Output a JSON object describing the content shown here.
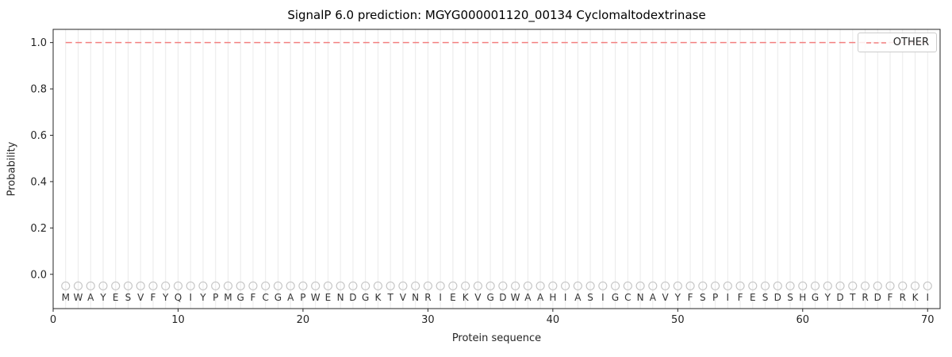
{
  "chart_data": {
    "type": "line",
    "title": "SignalP 6.0 prediction: MGYG000001120_00134 Cyclomaltodextrinase",
    "xlabel": "Protein sequence",
    "ylabel": "Probability",
    "xlim": [
      0,
      71
    ],
    "ylim": [
      -0.148,
      1.057
    ],
    "xticks": [
      0,
      10,
      20,
      30,
      40,
      50,
      60,
      70
    ],
    "yticks": [
      0.0,
      0.2,
      0.4,
      0.6,
      0.8,
      1.0
    ],
    "grid": "vertical gridline at each residue position 1-70",
    "sequence": "MWAYESVFYQIYPMGFCGAPWENDGKTVNRIEKVGDWAAHIASIGCNAVYFSPIFESDSHGYDTRDFRKI",
    "series": [
      {
        "name": "OTHER",
        "style": "dashed",
        "color": "#f28080",
        "x_positions": "residue index 1 through 70",
        "values": [
          1,
          1,
          1,
          1,
          1,
          1,
          1,
          1,
          1,
          1,
          1,
          1,
          1,
          1,
          1,
          1,
          1,
          1,
          1,
          1,
          1,
          1,
          1,
          1,
          1,
          1,
          1,
          1,
          1,
          1,
          1,
          1,
          1,
          1,
          1,
          1,
          1,
          1,
          1,
          1,
          1,
          1,
          1,
          1,
          1,
          1,
          1,
          1,
          1,
          1,
          1,
          1,
          1,
          1,
          1,
          1,
          1,
          1,
          1,
          1,
          1,
          1,
          1,
          1,
          1,
          1,
          1,
          1,
          1,
          1
        ]
      }
    ],
    "markers": {
      "shape": "open-circle",
      "y": -0.05,
      "radius": 5,
      "color": "#c4c4c4"
    },
    "sequence_letters_y": -0.1,
    "legend": {
      "position": "upper right",
      "entries": [
        {
          "label": "OTHER",
          "color": "#f28080",
          "dash": true
        }
      ]
    },
    "colors": {
      "grid": "#eaeaea",
      "spine": "#262626",
      "tick_label": "#262626",
      "letters": "#333333",
      "background": "#ffffff"
    }
  }
}
